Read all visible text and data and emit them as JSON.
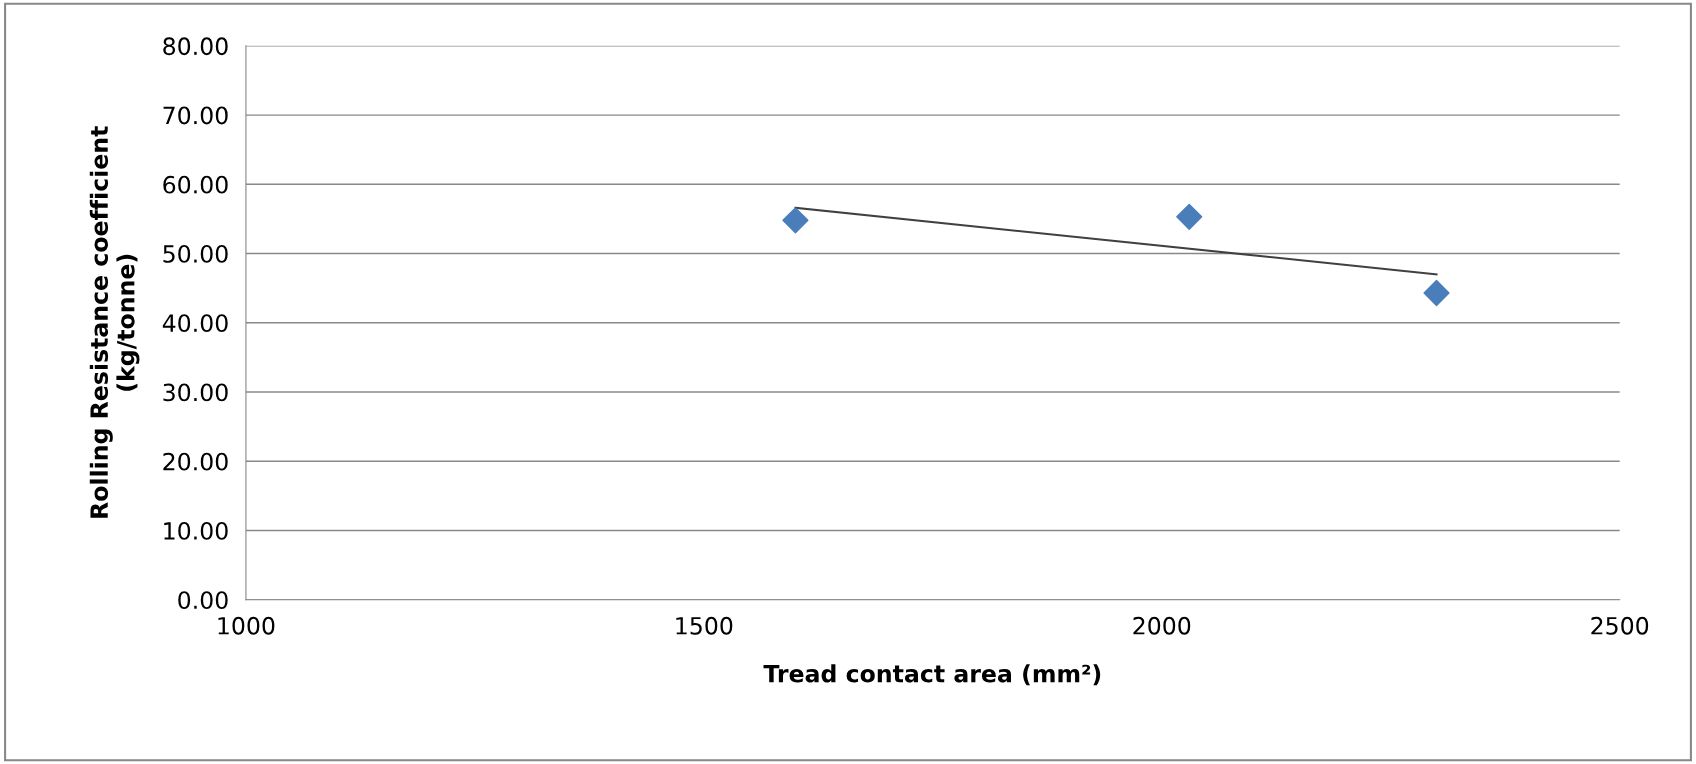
{
  "chart_data": {
    "type": "scatter",
    "xlabel": "Tread contact area (mm²)",
    "ylabel": "Rolling Resistance coefficient\n(kg/tonne)",
    "xlim": [
      1000,
      2500
    ],
    "xticks": [
      1000,
      1500,
      2000,
      2500
    ],
    "ylim": [
      0,
      80
    ],
    "yticks": [
      {
        "value": 0,
        "label": "0.00"
      },
      {
        "value": 10,
        "label": "10.00"
      },
      {
        "value": 20,
        "label": "20.00"
      },
      {
        "value": 30,
        "label": "30.00"
      },
      {
        "value": 40,
        "label": "40.00"
      },
      {
        "value": 50,
        "label": "50.00"
      },
      {
        "value": 60,
        "label": "60.00"
      },
      {
        "value": 70,
        "label": "70.00"
      },
      {
        "value": 80,
        "label": "80.00"
      }
    ],
    "grid": "y",
    "marker": "diamond",
    "series": [
      {
        "color": "#4a7ebb",
        "x": [
          1600,
          2030,
          2300
        ],
        "values": [
          54.8,
          55.3,
          44.3
        ]
      },
      {
        "type": "line",
        "color": "#404040",
        "marker": "none",
        "x": [
          1600,
          2300
        ],
        "values": [
          56.6,
          47.0
        ]
      }
    ]
  }
}
